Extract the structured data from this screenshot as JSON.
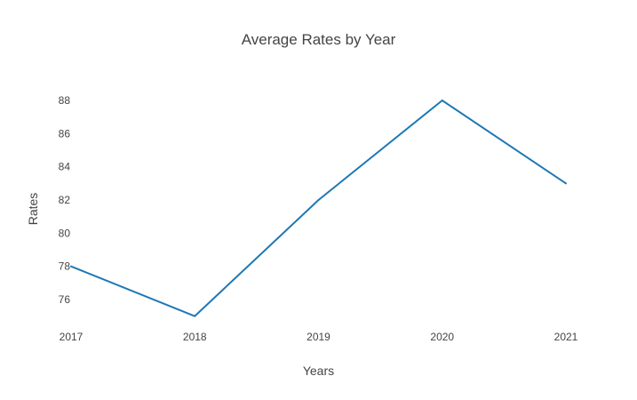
{
  "chart_data": {
    "type": "line",
    "title": "Average Rates by Year",
    "xlabel": "Years",
    "ylabel": "Rates",
    "categories": [
      "2017",
      "2018",
      "2019",
      "2020",
      "2021"
    ],
    "series": [
      {
        "values": [
          78,
          75,
          82,
          88,
          83
        ],
        "color": "#1f77b4"
      }
    ],
    "yticks": [
      76,
      78,
      80,
      82,
      84,
      86,
      88
    ],
    "ylim": [
      74.6,
      88.8
    ],
    "grid": false,
    "legend": "none"
  }
}
